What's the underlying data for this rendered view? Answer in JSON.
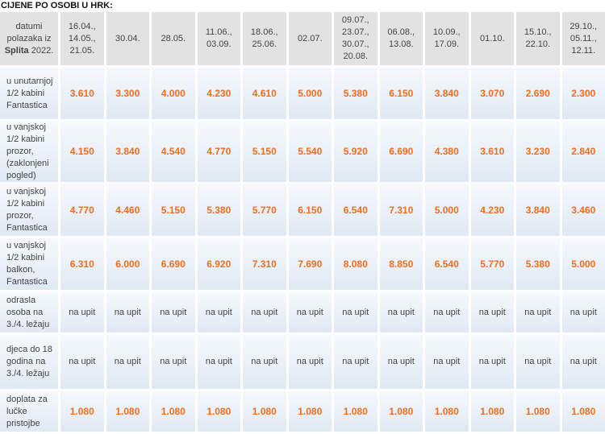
{
  "title": "CIJENE PO OSOBI U HRK:",
  "header": {
    "first_pre": "datumi polazaka iz",
    "first_bold": "Splita",
    "first_post": "2022.",
    "dates": [
      "16.04., 14.05., 21.05.",
      "30.04.",
      "28.05.",
      "11.06., 03.09.",
      "18.06., 25.06.",
      "02.07.",
      "09.07., 23.07., 30.07., 20.08.",
      "06.08., 13.08.",
      "10.09., 17.09.",
      "01.10.",
      "15.10., 22.10.",
      "29.10., 05.11., 12.11."
    ]
  },
  "rows": [
    {
      "label": "u unutarnjoj 1/2 kabini Fantastica",
      "values": [
        "3.610",
        "3.300",
        "4.000",
        "4.230",
        "4.610",
        "5.000",
        "5.380",
        "6.150",
        "3.840",
        "3.070",
        "2.690",
        "2.300"
      ]
    },
    {
      "label": "u vanjskoj 1/2 kabini prozor, (zaklonjeni pogled)",
      "values": [
        "4.150",
        "3.840",
        "4.540",
        "4.770",
        "5.150",
        "5.540",
        "5.920",
        "6.690",
        "4.380",
        "3.610",
        "3.230",
        "2.840"
      ]
    },
    {
      "label": "u vanjskoj 1/2 kabini prozor, Fantastica",
      "values": [
        "4.770",
        "4.460",
        "5.150",
        "5.380",
        "5.770",
        "6.150",
        "6.540",
        "7.310",
        "5.000",
        "4.230",
        "3.840",
        "3.460"
      ]
    },
    {
      "label": "u vanjskoj 1/2 kabini balkon, Fantastica",
      "values": [
        "6.310",
        "6.000",
        "6.690",
        "6.920",
        "7.310",
        "7.690",
        "8.080",
        "8.850",
        "6.540",
        "5.770",
        "5.380",
        "5.000"
      ]
    },
    {
      "label": "odrasla osoba na 3./4. ležaju",
      "values": [
        "na upit",
        "na upit",
        "na upit",
        "na upit",
        "na upit",
        "na upit",
        "na upit",
        "na upit",
        "na upit",
        "na upit",
        "na upit",
        "na upit"
      ]
    },
    {
      "label": "djeca do 18 godina na 3./4. ležaju",
      "values": [
        "na upit",
        "na upit",
        "na upit",
        "na upit",
        "na upit",
        "na upit",
        "na upit",
        "na upit",
        "na upit",
        "na upit",
        "na upit",
        "na upit"
      ]
    },
    {
      "label": "doplata za lučke pristojbe",
      "values": [
        "1.080",
        "1.080",
        "1.080",
        "1.080",
        "1.080",
        "1.080",
        "1.080",
        "1.080",
        "1.080",
        "1.080",
        "1.080",
        "1.080"
      ]
    }
  ],
  "colors": {
    "price": "#f06d1f",
    "header_bg": "#e2e2e2"
  }
}
